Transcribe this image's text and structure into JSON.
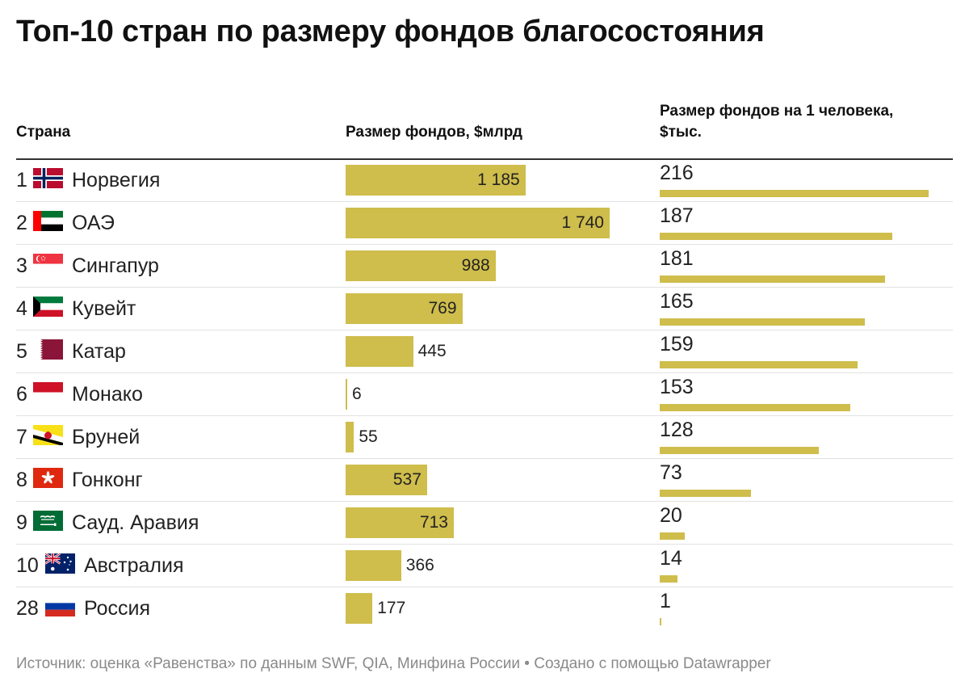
{
  "title": "Топ-10 стран по размеру фондов благосостояния",
  "headers": {
    "country": "Страна",
    "fund": "Размер фондов, $млрд",
    "per_capita": "Размер фондов на 1 человека, $тыс."
  },
  "source": "Источник: оценка «Равенства» по данным SWF, QIA, Минфина России • Создано с помощью Datawrapper",
  "colors": {
    "bar": "#cfbd4c",
    "text": "#222222",
    "muted": "#8a8a8a"
  },
  "chart_data": {
    "type": "table",
    "title": "Топ-10 стран по размеру фондов благосостояния",
    "columns": [
      "Страна",
      "Размер фондов, $млрд",
      "Размер фондов на 1 человека, $тыс."
    ],
    "fund_max": 1740,
    "per_capita_max": 216,
    "rows": [
      {
        "rank": "1",
        "country": "Норвегия",
        "flag": "norway-flag-icon",
        "fund": 1185,
        "fund_label": "1 185",
        "per_capita": 216,
        "per_capita_label": "216"
      },
      {
        "rank": "2",
        "country": "ОАЭ",
        "flag": "uae-flag-icon",
        "fund": 1740,
        "fund_label": "1 740",
        "per_capita": 187,
        "per_capita_label": "187"
      },
      {
        "rank": "3",
        "country": "Сингапур",
        "flag": "singapore-flag-icon",
        "fund": 988,
        "fund_label": "988",
        "per_capita": 181,
        "per_capita_label": "181"
      },
      {
        "rank": "4",
        "country": "Кувейт",
        "flag": "kuwait-flag-icon",
        "fund": 769,
        "fund_label": "769",
        "per_capita": 165,
        "per_capita_label": "165"
      },
      {
        "rank": "5",
        "country": "Катар",
        "flag": "qatar-flag-icon",
        "fund": 445,
        "fund_label": "445",
        "per_capita": 159,
        "per_capita_label": "159"
      },
      {
        "rank": "6",
        "country": "Монако",
        "flag": "monaco-flag-icon",
        "fund": 6,
        "fund_label": "6",
        "per_capita": 153,
        "per_capita_label": "153"
      },
      {
        "rank": "7",
        "country": "Бруней",
        "flag": "brunei-flag-icon",
        "fund": 55,
        "fund_label": "55",
        "per_capita": 128,
        "per_capita_label": "128"
      },
      {
        "rank": "8",
        "country": "Гонконг",
        "flag": "hongkong-flag-icon",
        "fund": 537,
        "fund_label": "537",
        "per_capita": 73,
        "per_capita_label": "73"
      },
      {
        "rank": "9",
        "country": "Сауд. Аравия",
        "flag": "saudi-arabia-flag-icon",
        "fund": 713,
        "fund_label": "713",
        "per_capita": 20,
        "per_capita_label": "20"
      },
      {
        "rank": "10",
        "country": "Австралия",
        "flag": "australia-flag-icon",
        "fund": 366,
        "fund_label": "366",
        "per_capita": 14,
        "per_capita_label": "14"
      },
      {
        "rank": "28",
        "country": "Россия",
        "flag": "russia-flag-icon",
        "fund": 177,
        "fund_label": "177",
        "per_capita": 1,
        "per_capita_label": "1"
      }
    ]
  }
}
